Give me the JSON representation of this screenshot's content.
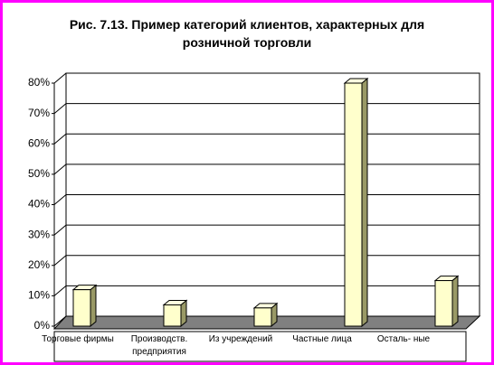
{
  "chart_data": {
    "type": "bar3d",
    "title": "Рис. 7.13. Пример категорий клиентов, характерных для розничной торговли",
    "categories": [
      "Торговые фирмы",
      "Производств. предприятия",
      "Из учреждений",
      "Частные лица",
      "Осталь- ные"
    ],
    "values": [
      12,
      7,
      6,
      80,
      15
    ],
    "color": "#ffffcc",
    "ylim": [
      0,
      80
    ],
    "yticks": [
      {
        "value": 0,
        "label": "0%"
      },
      {
        "value": 10,
        "label": "10%"
      },
      {
        "value": 20,
        "label": "20%"
      },
      {
        "value": 30,
        "label": "30%"
      },
      {
        "value": 40,
        "label": "40%"
      },
      {
        "value": 50,
        "label": "50%"
      },
      {
        "value": 60,
        "label": "60%"
      },
      {
        "value": 70,
        "label": "70%"
      },
      {
        "value": 80,
        "label": "80%"
      }
    ],
    "grid": true
  }
}
